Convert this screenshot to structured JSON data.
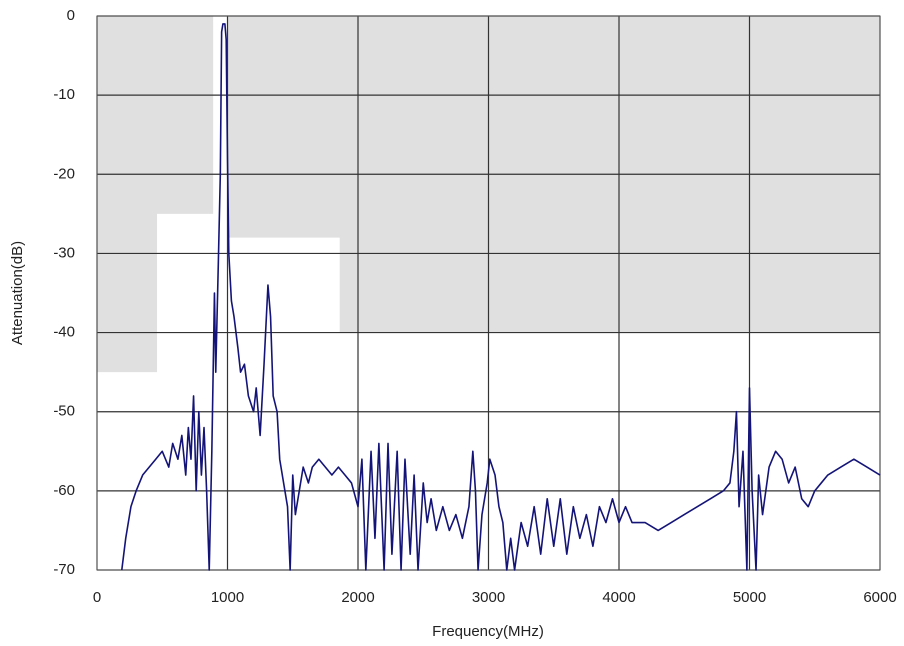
{
  "chart_data": {
    "type": "line",
    "xlabel": "Frequency(MHz)",
    "ylabel": "Attenuation(dB)",
    "xlim": [
      0,
      6000
    ],
    "xticks": [
      0,
      1000,
      2000,
      3000,
      4000,
      5000,
      6000
    ],
    "ylim": [
      -70,
      0
    ],
    "yticks": [
      0,
      -10,
      -20,
      -30,
      -40,
      -50,
      -60,
      -70
    ],
    "grid": true,
    "mask": {
      "color": "#e0e0e0",
      "x": [
        0,
        460,
        460,
        890,
        890,
        1000,
        1000,
        1860,
        1860,
        6000
      ],
      "values": [
        -45,
        -45,
        -25,
        -25,
        0,
        0,
        -28,
        -28,
        -40,
        -40
      ]
    },
    "series": [
      {
        "color": "#141478",
        "x": [
          190,
          220,
          260,
          300,
          350,
          400,
          450,
          500,
          550,
          580,
          620,
          650,
          680,
          700,
          720,
          740,
          760,
          780,
          800,
          820,
          840,
          860,
          880,
          900,
          910,
          930,
          945,
          955,
          965,
          980,
          990,
          1000,
          1010,
          1030,
          1050,
          1080,
          1100,
          1130,
          1160,
          1200,
          1220,
          1250,
          1280,
          1310,
          1330,
          1350,
          1380,
          1400,
          1430,
          1460,
          1480,
          1500,
          1520,
          1550,
          1580,
          1620,
          1650,
          1700,
          1750,
          1800,
          1850,
          1900,
          1950,
          2000,
          2030,
          2060,
          2100,
          2130,
          2160,
          2200,
          2230,
          2260,
          2300,
          2330,
          2360,
          2400,
          2430,
          2460,
          2500,
          2530,
          2560,
          2600,
          2650,
          2700,
          2750,
          2800,
          2850,
          2880,
          2900,
          2920,
          2950,
          2990,
          3010,
          3050,
          3080,
          3110,
          3140,
          3170,
          3200,
          3250,
          3300,
          3350,
          3400,
          3450,
          3500,
          3550,
          3600,
          3650,
          3700,
          3750,
          3800,
          3850,
          3900,
          3950,
          4000,
          4050,
          4100,
          4200,
          4300,
          4400,
          4500,
          4600,
          4700,
          4800,
          4850,
          4880,
          4900,
          4920,
          4950,
          4980,
          5000,
          5020,
          5050,
          5070,
          5100,
          5150,
          5200,
          5250,
          5300,
          5350,
          5400,
          5450,
          5500,
          5550,
          5600,
          5700,
          5800,
          5900,
          6000
        ],
        "values": [
          -70,
          -66,
          -62,
          -60,
          -58,
          -57,
          -56,
          -55,
          -57,
          -54,
          -56,
          -53,
          -58,
          -52,
          -56,
          -48,
          -60,
          -50,
          -58,
          -52,
          -60,
          -70,
          -55,
          -35,
          -45,
          -31,
          -20,
          -2,
          -1,
          -1,
          -3,
          -18,
          -30,
          -36,
          -38,
          -42,
          -45,
          -44,
          -48,
          -50,
          -47,
          -53,
          -44,
          -34,
          -38,
          -48,
          -50,
          -56,
          -59,
          -62,
          -70,
          -58,
          -63,
          -60,
          -57,
          -59,
          -57,
          -56,
          -57,
          -58,
          -57,
          -58,
          -59,
          -62,
          -56,
          -70,
          -55,
          -66,
          -54,
          -70,
          -54,
          -68,
          -55,
          -70,
          -56,
          -68,
          -58,
          -70,
          -59,
          -64,
          -61,
          -65,
          -62,
          -65,
          -63,
          -66,
          -62,
          -55,
          -60,
          -70,
          -63,
          -59,
          -56,
          -58,
          -62,
          -64,
          -70,
          -66,
          -70,
          -64,
          -67,
          -62,
          -68,
          -61,
          -67,
          -61,
          -68,
          -62,
          -66,
          -63,
          -67,
          -62,
          -64,
          -61,
          -64,
          -62,
          -64,
          -64,
          -65,
          -64,
          -63,
          -62,
          -61,
          -60,
          -59,
          -55,
          -50,
          -62,
          -55,
          -70,
          -47,
          -60,
          -70,
          -58,
          -63,
          -57,
          -55,
          -56,
          -59,
          -57,
          -61,
          -62,
          -60,
          -59,
          -58,
          -57,
          -56,
          -57,
          -58
        ]
      }
    ]
  }
}
